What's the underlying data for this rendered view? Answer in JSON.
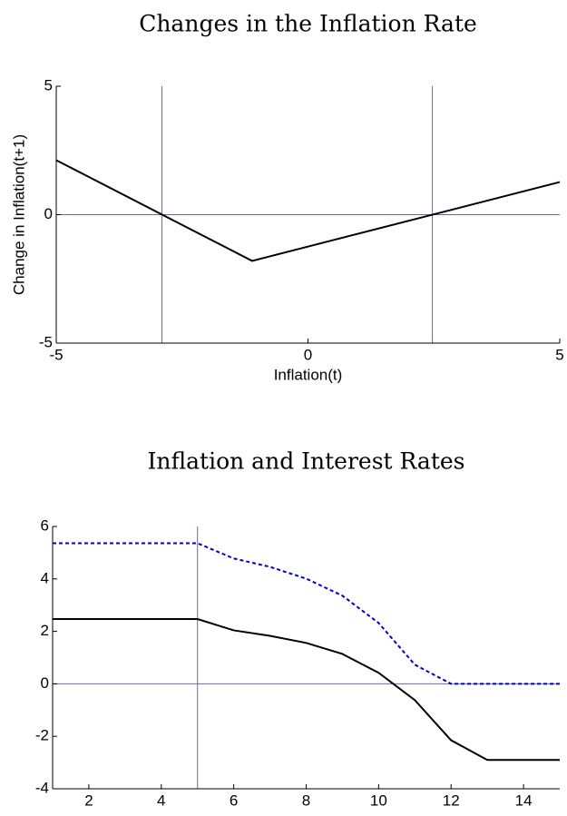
{
  "chart_data": [
    {
      "type": "line",
      "title": "Changes in the Inflation Rate",
      "x_label": "Inflation(t)",
      "y_label": "Change in Inflation(t+1)",
      "x": [
        -5,
        -1.11,
        5
      ],
      "series": [
        {
          "color": "#000000",
          "style": "solid",
          "values": [
            2.12,
            -1.8,
            1.27
          ]
        }
      ],
      "xlim": [
        -5,
        5
      ],
      "xticks": [
        -5,
        0,
        5
      ],
      "ylim": [
        -5,
        5
      ],
      "yticks": [
        -5,
        0,
        5
      ],
      "vlines": [
        -2.9,
        2.47
      ],
      "hlines": [
        0
      ],
      "ref_color": "#6a6a9a"
    },
    {
      "type": "line",
      "title": "Inflation and Interest Rates",
      "x": [
        1,
        2,
        3,
        4,
        5,
        6,
        7,
        8,
        9,
        10,
        11,
        12,
        13,
        14,
        15
      ],
      "series": [
        {
          "color": "#0000cc",
          "style": "dashed",
          "values": [
            5.36,
            5.36,
            5.36,
            5.36,
            5.36,
            4.78,
            4.46,
            4.01,
            3.36,
            2.32,
            0.73,
            0,
            0,
            0,
            0
          ]
        },
        {
          "color": "#000000",
          "style": "solid",
          "values": [
            2.47,
            2.47,
            2.47,
            2.47,
            2.47,
            2.04,
            1.83,
            1.56,
            1.14,
            0.42,
            -0.62,
            -2.15,
            -2.9,
            -2.9,
            -2.9
          ]
        }
      ],
      "xlim": [
        1,
        15
      ],
      "xticks": [
        2,
        4,
        6,
        8,
        10,
        12,
        14
      ],
      "ylim": [
        -4,
        6
      ],
      "yticks": [
        -4,
        -2,
        0,
        2,
        4,
        6
      ],
      "vlines": [
        5
      ],
      "hlines": [
        0
      ],
      "ref_color": "#6a6a9a"
    }
  ]
}
